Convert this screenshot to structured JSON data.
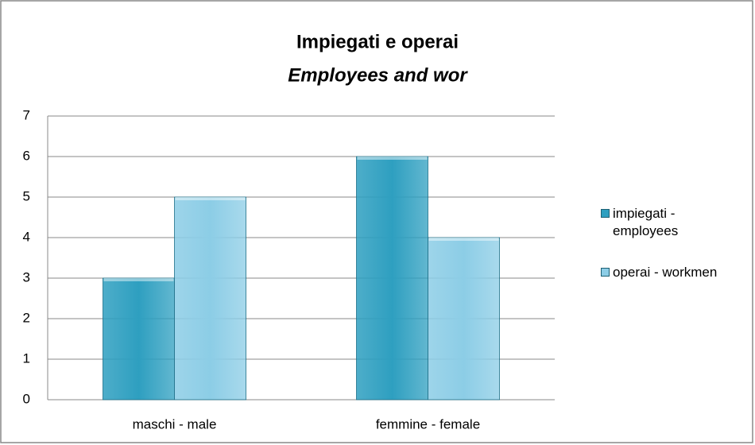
{
  "chart_data": {
    "type": "bar",
    "title": "Impiegati e operai",
    "subtitle": "Employees and wor",
    "categories": [
      "maschi - male",
      "femmine - female"
    ],
    "series": [
      {
        "name": "impiegati - employees",
        "color": "#2e9fc0",
        "values": [
          3,
          6
        ]
      },
      {
        "name": "operai - workmen",
        "color": "#8ccde6",
        "values": [
          5,
          4
        ]
      }
    ],
    "ylim": [
      0,
      7
    ],
    "yticks": [
      0,
      1,
      2,
      3,
      4,
      5,
      6,
      7
    ],
    "grid": true,
    "legend": "right"
  }
}
